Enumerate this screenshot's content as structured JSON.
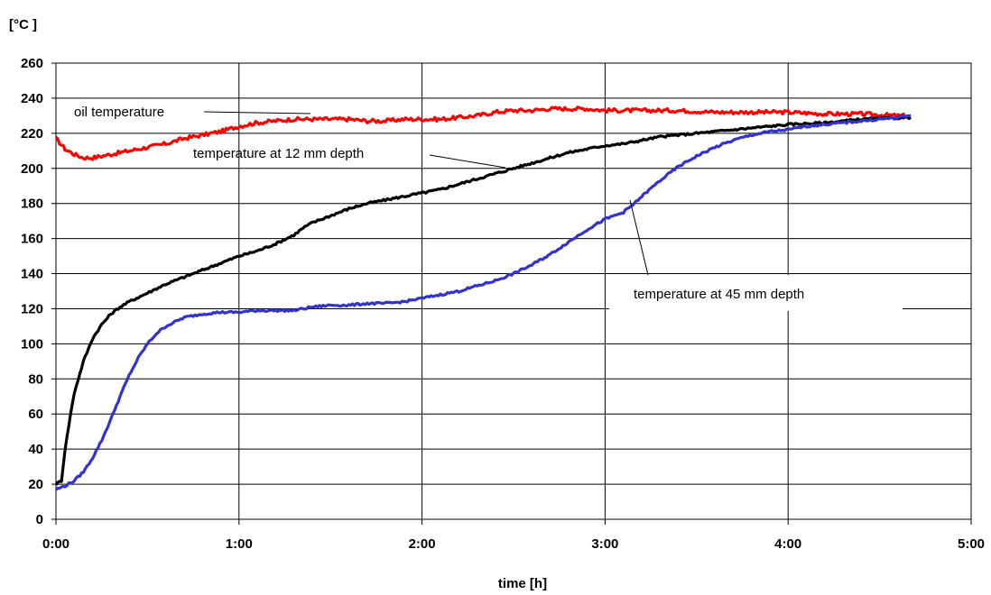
{
  "chart_data": {
    "type": "line",
    "ylabel": "[°C ]",
    "xlabel": "time [h]",
    "ylim": [
      0,
      260
    ],
    "xlim_hours": [
      0,
      5
    ],
    "grid": true,
    "y_ticks": [
      "0",
      "20",
      "40",
      "60",
      "80",
      "100",
      "120",
      "140",
      "160",
      "180",
      "200",
      "220",
      "240",
      "260"
    ],
    "x_ticks": [
      "0:00",
      "1:00",
      "2:00",
      "3:00",
      "4:00",
      "5:00"
    ],
    "annotations": {
      "oil": "oil temperature",
      "d12": "temperature at 12 mm depth",
      "d45": "temperature at  45 mm depth"
    },
    "series": [
      {
        "name": "oil temperature",
        "color": "#ff0000",
        "x_hours": [
          0.0,
          0.05,
          0.1,
          0.15,
          0.2,
          0.3,
          0.4,
          0.5,
          0.6,
          0.7,
          0.8,
          0.9,
          1.0,
          1.1,
          1.2,
          1.3,
          1.4,
          1.5,
          1.6,
          1.7,
          1.8,
          1.9,
          2.0,
          2.1,
          2.2,
          2.3,
          2.4,
          2.5,
          2.6,
          2.7,
          2.8,
          2.9,
          3.0,
          3.2,
          3.4,
          3.6,
          3.8,
          4.0,
          4.2,
          4.4,
          4.6,
          4.67
        ],
        "values": [
          217,
          211,
          208,
          206,
          206,
          208,
          210,
          212,
          214,
          217,
          219,
          221,
          224,
          226,
          227,
          228,
          228,
          228,
          228,
          227,
          227,
          228,
          228,
          228,
          229,
          230,
          232,
          233,
          233,
          234,
          234,
          234,
          233,
          233,
          233,
          232,
          232,
          232,
          231,
          231,
          230,
          230
        ]
      },
      {
        "name": "temperature at 12 mm depth",
        "color": "#000000",
        "x_hours": [
          0.0,
          0.03,
          0.05,
          0.08,
          0.1,
          0.15,
          0.2,
          0.25,
          0.3,
          0.35,
          0.4,
          0.5,
          0.6,
          0.7,
          0.8,
          0.9,
          1.0,
          1.1,
          1.2,
          1.3,
          1.35,
          1.4,
          1.5,
          1.6,
          1.7,
          1.8,
          1.9,
          2.0,
          2.1,
          2.2,
          2.3,
          2.4,
          2.5,
          2.6,
          2.7,
          2.8,
          2.9,
          3.0,
          3.1,
          3.2,
          3.3,
          3.4,
          3.5,
          3.6,
          3.7,
          3.8,
          3.9,
          4.0,
          4.2,
          4.4,
          4.67
        ],
        "values": [
          20,
          22,
          40,
          60,
          72,
          90,
          103,
          111,
          117,
          121,
          124,
          129,
          134,
          138,
          142,
          146,
          150,
          153,
          157,
          162,
          166,
          169,
          173,
          177,
          180,
          182,
          184,
          186,
          188,
          191,
          194,
          197,
          200,
          203,
          206,
          209,
          211,
          213,
          214,
          216,
          218,
          219,
          220,
          221,
          222,
          223,
          224,
          225,
          226,
          228,
          229
        ]
      },
      {
        "name": "temperature at  45 mm depth",
        "color": "#3333cc",
        "x_hours": [
          0.0,
          0.05,
          0.1,
          0.15,
          0.2,
          0.25,
          0.3,
          0.35,
          0.4,
          0.45,
          0.5,
          0.55,
          0.6,
          0.7,
          0.8,
          0.9,
          1.0,
          1.1,
          1.2,
          1.3,
          1.4,
          1.5,
          1.6,
          1.7,
          1.8,
          1.9,
          2.0,
          2.1,
          2.2,
          2.3,
          2.4,
          2.5,
          2.6,
          2.7,
          2.8,
          2.9,
          3.0,
          3.1,
          3.15,
          3.2,
          3.3,
          3.4,
          3.5,
          3.6,
          3.7,
          3.8,
          3.9,
          4.0,
          4.1,
          4.2,
          4.3,
          4.4,
          4.5,
          4.6,
          4.67
        ],
        "values": [
          17,
          19,
          22,
          27,
          35,
          45,
          57,
          70,
          82,
          92,
          100,
          106,
          110,
          115,
          117,
          118,
          118,
          119,
          119,
          119,
          121,
          122,
          122,
          123,
          123,
          124,
          126,
          128,
          130,
          133,
          136,
          140,
          145,
          151,
          158,
          165,
          171,
          175,
          179,
          184,
          193,
          201,
          207,
          212,
          216,
          219,
          221,
          222,
          224,
          225,
          226,
          227,
          228,
          229,
          230
        ]
      }
    ]
  }
}
